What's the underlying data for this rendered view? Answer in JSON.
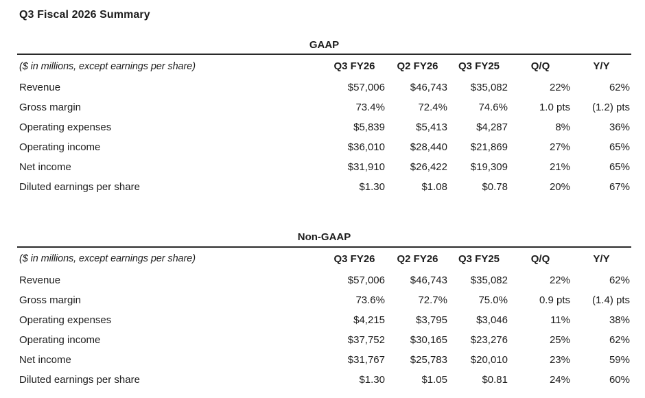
{
  "page": {
    "title": "Q3 Fiscal 2026 Summary"
  },
  "tables": [
    {
      "title": "GAAP",
      "note": "($ in millions, except earnings per share)",
      "columns": [
        "Q3 FY26",
        "Q2 FY26",
        "Q3 FY25",
        "Q/Q",
        "Y/Y"
      ],
      "rows": [
        {
          "label": "Revenue",
          "values": [
            "$57,006",
            "$46,743",
            "$35,082",
            "22%",
            "62%"
          ]
        },
        {
          "label": "Gross margin",
          "values": [
            "73.4%",
            "72.4%",
            "74.6%",
            "1.0 pts",
            "(1.2) pts"
          ]
        },
        {
          "label": "Operating expenses",
          "values": [
            "$5,839",
            "$5,413",
            "$4,287",
            "8%",
            "36%"
          ]
        },
        {
          "label": "Operating income",
          "values": [
            "$36,010",
            "$28,440",
            "$21,869",
            "27%",
            "65%"
          ]
        },
        {
          "label": "Net income",
          "values": [
            "$31,910",
            "$26,422",
            "$19,309",
            "21%",
            "65%"
          ]
        },
        {
          "label": "Diluted earnings per share",
          "values": [
            "$1.30",
            "$1.08",
            "$0.78",
            "20%",
            "67%"
          ]
        }
      ]
    },
    {
      "title": "Non-GAAP",
      "note": "($ in millions, except earnings per share)",
      "columns": [
        "Q3 FY26",
        "Q2 FY26",
        "Q3 FY25",
        "Q/Q",
        "Y/Y"
      ],
      "rows": [
        {
          "label": "Revenue",
          "values": [
            "$57,006",
            "$46,743",
            "$35,082",
            "22%",
            "62%"
          ]
        },
        {
          "label": "Gross margin",
          "values": [
            "73.6%",
            "72.7%",
            "75.0%",
            "0.9 pts",
            "(1.4) pts"
          ]
        },
        {
          "label": "Operating expenses",
          "values": [
            "$4,215",
            "$3,795",
            "$3,046",
            "11%",
            "38%"
          ]
        },
        {
          "label": "Operating income",
          "values": [
            "$37,752",
            "$30,165",
            "$23,276",
            "25%",
            "62%"
          ]
        },
        {
          "label": "Net income",
          "values": [
            "$31,767",
            "$25,783",
            "$20,010",
            "23%",
            "59%"
          ]
        },
        {
          "label": "Diluted earnings per share",
          "values": [
            "$1.30",
            "$1.05",
            "$0.81",
            "24%",
            "60%"
          ]
        }
      ]
    }
  ]
}
